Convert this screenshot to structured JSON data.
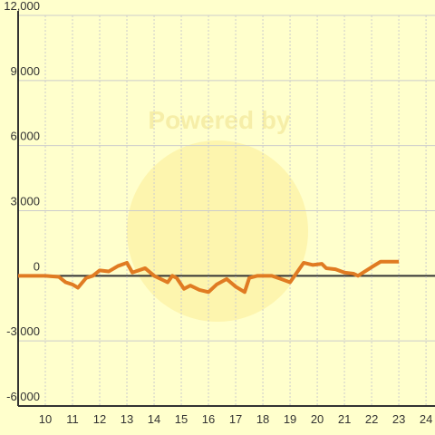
{
  "chart_data": {
    "type": "line",
    "watermark": "Powered by",
    "x": [
      9,
      10,
      10.5,
      10.75,
      11,
      11.2,
      11.5,
      11.75,
      12,
      12.33,
      12.67,
      13,
      13.2,
      13.67,
      14,
      14.33,
      14.5,
      14.67,
      14.83,
      15.1,
      15.33,
      15.67,
      16,
      16.3,
      16.67,
      17,
      17.33,
      17.5,
      17.8,
      18.33,
      18.67,
      19,
      19.5,
      19.83,
      20.17,
      20.33,
      20.67,
      21,
      21.33,
      21.5,
      22,
      22.33,
      23
    ],
    "series": [
      {
        "color": "#e07b22",
        "values": [
          0,
          0,
          -50,
          -300,
          -400,
          -550,
          -100,
          0,
          250,
          200,
          450,
          600,
          150,
          350,
          0,
          -200,
          -300,
          0,
          -100,
          -600,
          -450,
          -650,
          -750,
          -400,
          -150,
          -500,
          -750,
          -100,
          0,
          0,
          -150,
          -300,
          600,
          500,
          550,
          350,
          300,
          150,
          100,
          0,
          400,
          650,
          650
        ]
      }
    ],
    "xlim": [
      9,
      24.33
    ],
    "xticks": [
      10,
      11,
      12,
      13,
      14,
      15,
      16,
      17,
      18,
      19,
      20,
      21,
      22,
      23,
      24
    ],
    "ylim": [
      -6000,
      12000
    ],
    "yticks": [
      {
        "value": -6000,
        "label": "-6,000"
      },
      {
        "value": -3000,
        "label": "-3,000"
      },
      0,
      {
        "value": 3000,
        "label": "3,000"
      },
      {
        "value": 6000,
        "label": "6,000"
      },
      {
        "value": 9000,
        "label": "9,000"
      },
      {
        "value": 12000,
        "label": "12,000"
      }
    ],
    "grid": true
  }
}
